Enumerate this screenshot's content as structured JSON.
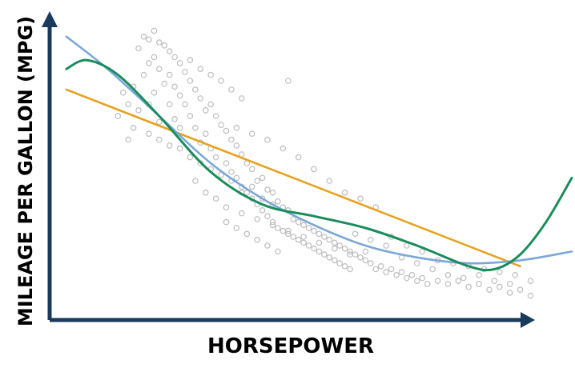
{
  "chart_data": {
    "type": "scatter",
    "xlabel": "HORSEPOWER",
    "ylabel": "MILEAGE PER GALLON (MPG)",
    "xlim": [
      0,
      100
    ],
    "ylim": [
      0,
      100
    ],
    "grid": false,
    "legend": "none",
    "points": [
      [
        17,
        93
      ],
      [
        18,
        92
      ],
      [
        19,
        95
      ],
      [
        20,
        91
      ],
      [
        16,
        89
      ],
      [
        21,
        90
      ],
      [
        22,
        88
      ],
      [
        19,
        86
      ],
      [
        23,
        86
      ],
      [
        18,
        84
      ],
      [
        20,
        82
      ],
      [
        24,
        84
      ],
      [
        22,
        80
      ],
      [
        17,
        80
      ],
      [
        25,
        81
      ],
      [
        21,
        77
      ],
      [
        26,
        78
      ],
      [
        23,
        76
      ],
      [
        19,
        74
      ],
      [
        24,
        73
      ],
      [
        27,
        75
      ],
      [
        28,
        72
      ],
      [
        25,
        70
      ],
      [
        22,
        70
      ],
      [
        29,
        68
      ],
      [
        30,
        70
      ],
      [
        26,
        66
      ],
      [
        23,
        65
      ],
      [
        31,
        66
      ],
      [
        27,
        62
      ],
      [
        32,
        63
      ],
      [
        29,
        60
      ],
      [
        33,
        61
      ],
      [
        28,
        57
      ],
      [
        34,
        58
      ],
      [
        30,
        55
      ],
      [
        35,
        56
      ],
      [
        31,
        52
      ],
      [
        36,
        53
      ],
      [
        33,
        50
      ],
      [
        37,
        50
      ],
      [
        34,
        47
      ],
      [
        38,
        48
      ],
      [
        35,
        45
      ],
      [
        39,
        44
      ],
      [
        36,
        42
      ],
      [
        40,
        45
      ],
      [
        37,
        40
      ],
      [
        41,
        41
      ],
      [
        38,
        38
      ],
      [
        42,
        40
      ],
      [
        39,
        36
      ],
      [
        43,
        37
      ],
      [
        40,
        34
      ],
      [
        44,
        35
      ],
      [
        41,
        32
      ],
      [
        45,
        34
      ],
      [
        42,
        30
      ],
      [
        46,
        31
      ],
      [
        43,
        28
      ],
      [
        47,
        30
      ],
      [
        44,
        27
      ],
      [
        48,
        29
      ],
      [
        45,
        26
      ],
      [
        49,
        28
      ],
      [
        46,
        25
      ],
      [
        50,
        27
      ],
      [
        47,
        24
      ],
      [
        51,
        26
      ],
      [
        48,
        23
      ],
      [
        52,
        25
      ],
      [
        49,
        22
      ],
      [
        53,
        24
      ],
      [
        50,
        21
      ],
      [
        54,
        23
      ],
      [
        51,
        20
      ],
      [
        55,
        22
      ],
      [
        52,
        19
      ],
      [
        56,
        21
      ],
      [
        53,
        18
      ],
      [
        57,
        20
      ],
      [
        54,
        17
      ],
      [
        58,
        19
      ],
      [
        55,
        16
      ],
      [
        59,
        18
      ],
      [
        56,
        15
      ],
      [
        60,
        17
      ],
      [
        57,
        14
      ],
      [
        61,
        16
      ],
      [
        62,
        14
      ],
      [
        63,
        15
      ],
      [
        64,
        13
      ],
      [
        65,
        14
      ],
      [
        66,
        12
      ],
      [
        67,
        13
      ],
      [
        68,
        11
      ],
      [
        69,
        12
      ],
      [
        70,
        10
      ],
      [
        71,
        11
      ],
      [
        72,
        9
      ],
      [
        74,
        10
      ],
      [
        76,
        9
      ],
      [
        78,
        10
      ],
      [
        80,
        8
      ],
      [
        82,
        9
      ],
      [
        84,
        7
      ],
      [
        86,
        8
      ],
      [
        88,
        6
      ],
      [
        90,
        7
      ],
      [
        92,
        5
      ],
      [
        15,
        76
      ],
      [
        14,
        70
      ],
      [
        16,
        68
      ],
      [
        13,
        74
      ],
      [
        12,
        66
      ],
      [
        15,
        62
      ],
      [
        14,
        58
      ],
      [
        18,
        60
      ],
      [
        20,
        58
      ],
      [
        22,
        56
      ],
      [
        24,
        55
      ],
      [
        26,
        52
      ],
      [
        28,
        50
      ],
      [
        30,
        48
      ],
      [
        32,
        46
      ],
      [
        34,
        44
      ],
      [
        36,
        40
      ],
      [
        38,
        42
      ],
      [
        40,
        38
      ],
      [
        42,
        36
      ],
      [
        35,
        62
      ],
      [
        38,
        60
      ],
      [
        41,
        58
      ],
      [
        44,
        55
      ],
      [
        47,
        52
      ],
      [
        50,
        48
      ],
      [
        53,
        44
      ],
      [
        56,
        40
      ],
      [
        59,
        38
      ],
      [
        62,
        35
      ],
      [
        33,
        35
      ],
      [
        36,
        33
      ],
      [
        39,
        31
      ],
      [
        42,
        29
      ],
      [
        45,
        27
      ],
      [
        48,
        25
      ],
      [
        51,
        23
      ],
      [
        54,
        21
      ],
      [
        57,
        19
      ],
      [
        60,
        20
      ],
      [
        65,
        25
      ],
      [
        68,
        22
      ],
      [
        71,
        20
      ],
      [
        74,
        17
      ],
      [
        77,
        16
      ],
      [
        80,
        15
      ],
      [
        83,
        14
      ],
      [
        86,
        13
      ],
      [
        89,
        12
      ],
      [
        92,
        10
      ],
      [
        26,
        85
      ],
      [
        28,
        82
      ],
      [
        30,
        80
      ],
      [
        32,
        78
      ],
      [
        34,
        75
      ],
      [
        36,
        72
      ],
      [
        45,
        78
      ],
      [
        24,
        62
      ],
      [
        20,
        64
      ],
      [
        18,
        70
      ],
      [
        27,
        44
      ],
      [
        29,
        40
      ],
      [
        31,
        38
      ],
      [
        33,
        30
      ],
      [
        35,
        28
      ],
      [
        37,
        26
      ],
      [
        39,
        24
      ],
      [
        41,
        22
      ],
      [
        43,
        20
      ],
      [
        58,
        26
      ],
      [
        61,
        24
      ],
      [
        64,
        22
      ],
      [
        67,
        18
      ],
      [
        70,
        16
      ],
      [
        73,
        14
      ],
      [
        76,
        12
      ],
      [
        79,
        11
      ],
      [
        82,
        12
      ],
      [
        85,
        10
      ],
      [
        88,
        9
      ]
    ],
    "series": [
      {
        "values": [
          [
            2,
            75
          ],
          [
            90,
            15
          ]
        ]
      },
      {
        "values": [
          [
            2,
            93
          ],
          [
            10,
            82
          ],
          [
            20,
            66
          ],
          [
            30,
            50
          ],
          [
            40,
            38
          ],
          [
            50,
            29
          ],
          [
            60,
            22
          ],
          [
            70,
            18
          ],
          [
            80,
            16
          ],
          [
            90,
            17
          ],
          [
            100,
            20
          ]
        ]
      },
      {
        "values": [
          [
            2,
            82
          ],
          [
            6,
            85
          ],
          [
            12,
            80
          ],
          [
            20,
            66
          ],
          [
            30,
            47
          ],
          [
            40,
            36
          ],
          [
            50,
            32
          ],
          [
            60,
            28
          ],
          [
            70,
            22
          ],
          [
            80,
            15
          ],
          [
            85,
            14
          ],
          [
            90,
            19
          ],
          [
            95,
            30
          ],
          [
            100,
            45
          ]
        ]
      }
    ],
    "colors": {
      "points": "#bdbdbd",
      "linear": "#e6a221",
      "quadratic": "#7ba7d8",
      "poly": "#1a8c5c",
      "axis": "#1a3a5c"
    }
  }
}
